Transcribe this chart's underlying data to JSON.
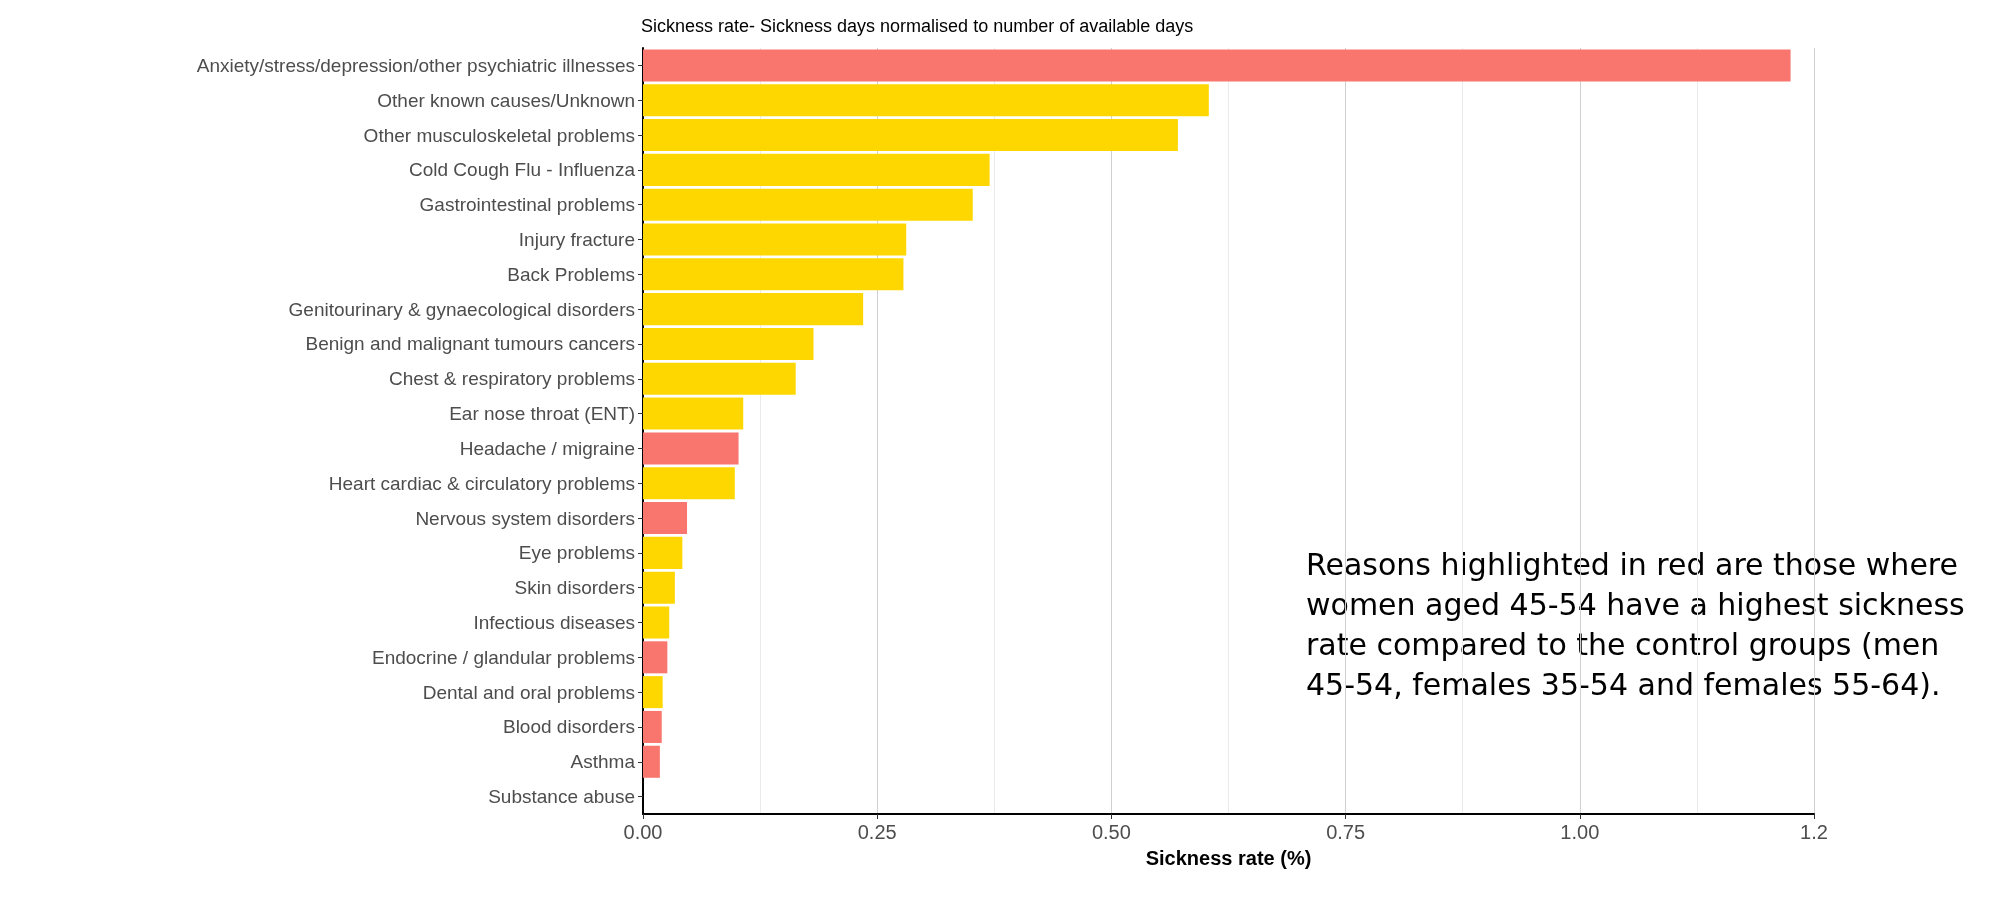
{
  "chart_data": {
    "type": "bar",
    "orientation": "horizontal",
    "title": "Sickness rate- Sickness days normalised to number of available days",
    "xlabel": "Sickness rate (%)",
    "categories": [
      "Anxiety/stress/depression/other psychiatric illnesses",
      "Other known causes/Unknown",
      "Other musculoskeletal problems",
      "Cold Cough Flu - Influenza",
      "Gastrointestinal problems",
      "Injury fracture",
      "Back Problems",
      "Genitourinary & gynaecological disorders",
      "Benign and malignant tumours cancers",
      "Chest & respiratory problems",
      "Ear nose throat (ENT)",
      "Headache / migraine",
      "Heart cardiac & circulatory problems",
      "Nervous system disorders",
      "Eye problems",
      "Skin disorders",
      "Infectious diseases",
      "Endocrine / glandular problems",
      "Dental and oral problems",
      "Blood disorders",
      "Asthma",
      "Substance abuse"
    ],
    "values": [
      1.225,
      0.604,
      0.571,
      0.37,
      0.352,
      0.281,
      0.278,
      0.235,
      0.182,
      0.163,
      0.107,
      0.102,
      0.098,
      0.047,
      0.042,
      0.034,
      0.028,
      0.026,
      0.021,
      0.02,
      0.018,
      0
    ],
    "colors": [
      "#f8766d",
      "#ffd700",
      "#ffd700",
      "#ffd700",
      "#ffd700",
      "#ffd700",
      "#ffd700",
      "#ffd700",
      "#ffd700",
      "#ffd700",
      "#ffd700",
      "#f8766d",
      "#ffd700",
      "#f8766d",
      "#ffd700",
      "#ffd700",
      "#ffd700",
      "#f8766d",
      "#ffd700",
      "#f8766d",
      "#f8766d",
      "#ffd700"
    ],
    "xlim": [
      0,
      1.25
    ],
    "xticks": [
      {
        "value": 0,
        "label": "0.00"
      },
      {
        "value": 0.25,
        "label": "0.25"
      },
      {
        "value": 0.5,
        "label": "0.50"
      },
      {
        "value": 0.75,
        "label": "0.75"
      },
      {
        "value": 1,
        "label": "1.00"
      },
      {
        "value": 1.25,
        "label": "1.2"
      }
    ],
    "grid": "x",
    "annotations": [
      "Reasons highlighted in red are those where women aged 45-54 have a highest sickness rate compared to the control groups (men 45-54, females 35-54 and females 55-64)."
    ]
  }
}
